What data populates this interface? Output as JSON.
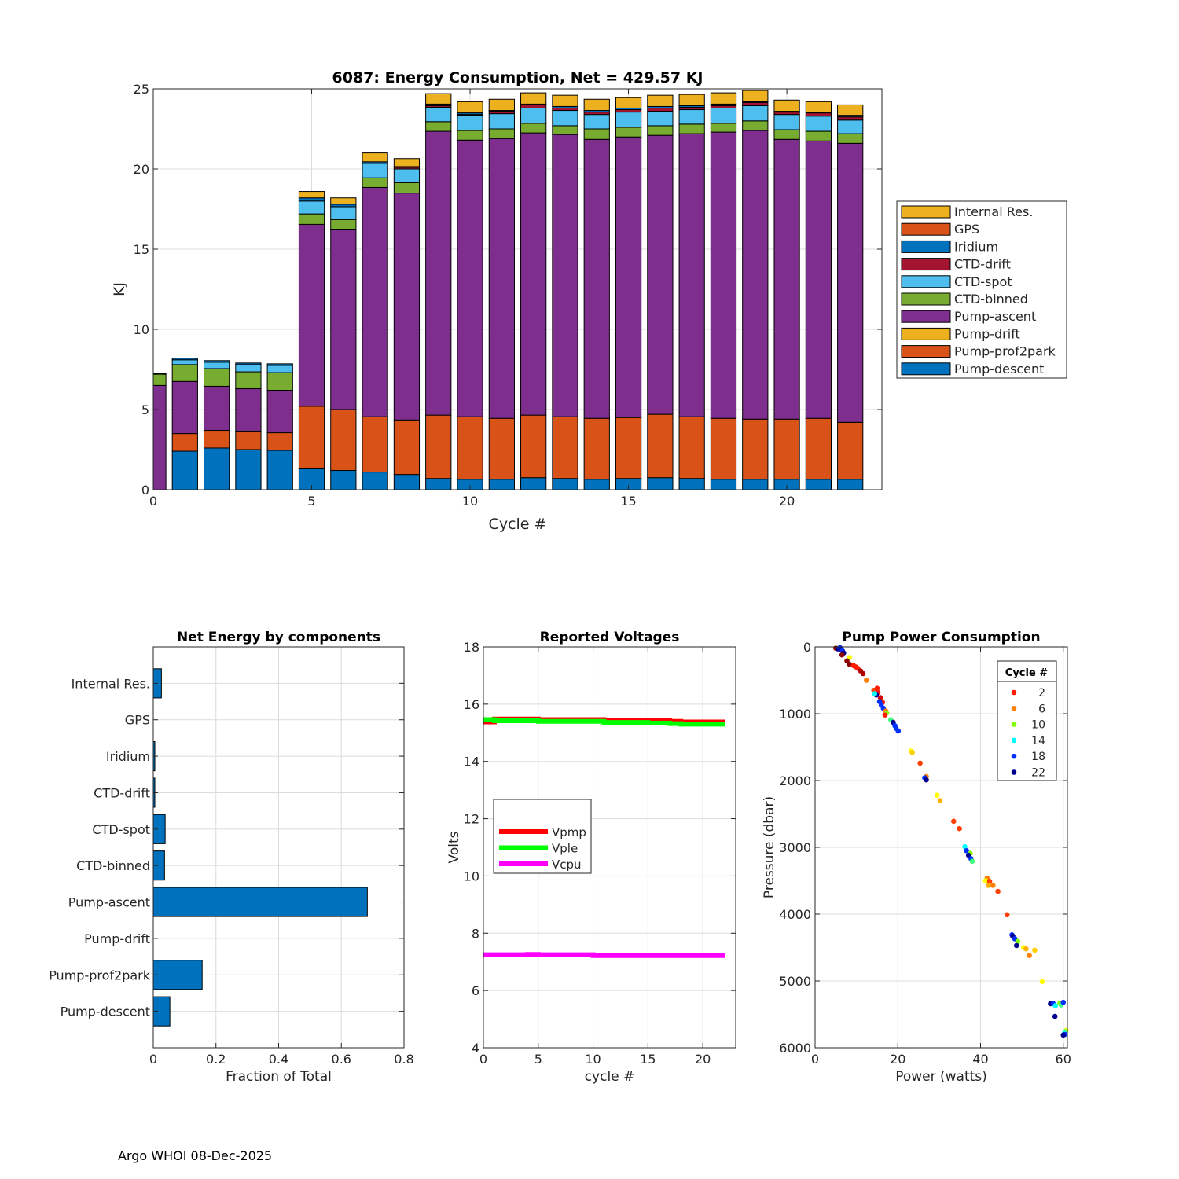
{
  "footer": "Argo WHOI 08-Dec-2025",
  "chart_data": [
    {
      "id": "energy",
      "type": "bar",
      "stacked": true,
      "title": "6087: Energy Consumption,  Net = 429.57 KJ",
      "xlabel": "Cycle #",
      "ylabel": "KJ",
      "xlim": [
        0,
        23
      ],
      "ylim": [
        0,
        25
      ],
      "xticks": [
        0,
        5,
        10,
        15,
        20
      ],
      "yticks": [
        0,
        5,
        10,
        15,
        20,
        25
      ],
      "grid": true,
      "legend_position": "outside-right",
      "x": [
        0,
        1,
        2,
        3,
        4,
        5,
        6,
        7,
        8,
        9,
        10,
        11,
        12,
        13,
        14,
        15,
        16,
        17,
        18,
        19,
        20,
        21,
        22
      ],
      "series": [
        {
          "name": "Pump-descent",
          "color": "#0072BD",
          "values": [
            0,
            2.4,
            2.6,
            2.5,
            2.45,
            1.3,
            1.2,
            1.1,
            0.95,
            0.7,
            0.65,
            0.65,
            0.75,
            0.7,
            0.65,
            0.7,
            0.75,
            0.7,
            0.65,
            0.65,
            0.65,
            0.65,
            0.65
          ]
        },
        {
          "name": "Pump-prof2park",
          "color": "#D95319",
          "values": [
            0,
            1.1,
            1.1,
            1.15,
            1.1,
            3.9,
            3.8,
            3.45,
            3.4,
            3.95,
            3.9,
            3.8,
            3.9,
            3.85,
            3.8,
            3.8,
            3.95,
            3.85,
            3.8,
            3.75,
            3.75,
            3.8,
            3.55
          ]
        },
        {
          "name": "Pump-drift",
          "color": "#EDB120",
          "values": [
            0,
            0,
            0,
            0,
            0,
            0,
            0,
            0,
            0,
            0,
            0,
            0,
            0,
            0,
            0,
            0,
            0,
            0,
            0,
            0,
            0,
            0,
            0
          ]
        },
        {
          "name": "Pump-ascent",
          "color": "#7E2F8E",
          "values": [
            6.5,
            3.25,
            2.75,
            2.65,
            2.65,
            11.35,
            11.25,
            14.3,
            14.15,
            17.7,
            17.25,
            17.45,
            17.6,
            17.6,
            17.4,
            17.5,
            17.4,
            17.65,
            17.85,
            18.0,
            17.45,
            17.3,
            17.4
          ]
        },
        {
          "name": "CTD-binned",
          "color": "#77AC30",
          "values": [
            0.7,
            1.05,
            1.1,
            1.05,
            1.1,
            0.65,
            0.6,
            0.6,
            0.65,
            0.6,
            0.6,
            0.6,
            0.6,
            0.55,
            0.65,
            0.6,
            0.6,
            0.6,
            0.55,
            0.6,
            0.6,
            0.6,
            0.6
          ]
        },
        {
          "name": "CTD-spot",
          "color": "#4DBEEE",
          "values": [
            0,
            0.3,
            0.4,
            0.45,
            0.45,
            0.8,
            0.8,
            0.9,
            0.85,
            0.9,
            0.95,
            0.95,
            0.95,
            0.95,
            0.9,
            0.95,
            0.9,
            0.9,
            0.95,
            0.95,
            0.95,
            0.95,
            0.85
          ]
        },
        {
          "name": "CTD-drift",
          "color": "#A2142F",
          "values": [
            0,
            0,
            0,
            0,
            0,
            0,
            0,
            0,
            0.1,
            0.1,
            0.05,
            0.15,
            0.2,
            0.15,
            0.15,
            0.15,
            0.2,
            0.15,
            0.15,
            0.2,
            0.15,
            0.2,
            0.2
          ]
        },
        {
          "name": "Iridium",
          "color": "#0072BD",
          "values": [
            0.05,
            0.1,
            0.1,
            0.1,
            0.1,
            0.2,
            0.15,
            0.1,
            0.05,
            0.1,
            0.1,
            0.05,
            0.05,
            0.1,
            0.1,
            0.1,
            0.1,
            0.1,
            0.1,
            0.05,
            0.05,
            0.05,
            0.1
          ]
        },
        {
          "name": "GPS",
          "color": "#D95319",
          "values": [
            0,
            0,
            0,
            0,
            0,
            0,
            0,
            0,
            0,
            0,
            0,
            0,
            0,
            0,
            0,
            0,
            0,
            0,
            0,
            0,
            0,
            0,
            0
          ]
        },
        {
          "name": "Internal Res.",
          "color": "#EDB120",
          "values": [
            0,
            0,
            0,
            0,
            0,
            0.4,
            0.4,
            0.55,
            0.5,
            0.65,
            0.7,
            0.7,
            0.7,
            0.7,
            0.7,
            0.65,
            0.7,
            0.7,
            0.7,
            0.7,
            0.7,
            0.65,
            0.65
          ]
        }
      ],
      "legend": [
        "Internal Res.",
        "GPS",
        "Iridium",
        "CTD-drift",
        "CTD-spot",
        "CTD-binned",
        "Pump-ascent",
        "Pump-drift",
        "Pump-prof2park",
        "Pump-descent"
      ]
    },
    {
      "id": "components",
      "type": "bar",
      "orientation": "horizontal",
      "title": "Net Energy by components",
      "xlabel": "Fraction of Total",
      "ylabel": "",
      "xlim": [
        0,
        0.8
      ],
      "xticks": [
        0,
        0.2,
        0.4,
        0.6,
        0.8
      ],
      "grid": true,
      "color": "#0072BD",
      "categories": [
        "Internal Res.",
        "GPS",
        "Iridium",
        "CTD-drift",
        "CTD-spot",
        "CTD-binned",
        "Pump-ascent",
        "Pump-drift",
        "Pump-prof2park",
        "Pump-descent"
      ],
      "values": [
        0.026,
        0,
        0.005,
        0.005,
        0.038,
        0.036,
        0.683,
        0,
        0.156,
        0.053
      ]
    },
    {
      "id": "voltages",
      "type": "line",
      "title": "Reported Voltages",
      "xlabel": "cycle #",
      "ylabel": "Volts",
      "xlim": [
        0,
        23
      ],
      "ylim": [
        4,
        18
      ],
      "xticks": [
        0,
        5,
        10,
        15,
        20
      ],
      "yticks": [
        4,
        6,
        8,
        10,
        12,
        14,
        16,
        18
      ],
      "grid": true,
      "legend_position": "middle-left",
      "x": [
        0,
        1,
        2,
        3,
        4,
        5,
        6,
        7,
        8,
        9,
        10,
        11,
        12,
        13,
        14,
        15,
        16,
        17,
        18,
        19,
        20,
        21,
        22
      ],
      "series": [
        {
          "name": "Vpmp",
          "color": "#FF0000",
          "values": [
            15.38,
            15.48,
            15.48,
            15.48,
            15.48,
            15.46,
            15.46,
            15.46,
            15.46,
            15.46,
            15.46,
            15.44,
            15.44,
            15.44,
            15.44,
            15.42,
            15.42,
            15.4,
            15.38,
            15.38,
            15.38,
            15.38,
            15.38
          ]
        },
        {
          "name": "Vple",
          "color": "#00FF00",
          "values": [
            15.46,
            15.42,
            15.42,
            15.42,
            15.42,
            15.4,
            15.4,
            15.4,
            15.4,
            15.4,
            15.4,
            15.36,
            15.36,
            15.36,
            15.36,
            15.34,
            15.34,
            15.32,
            15.3,
            15.3,
            15.3,
            15.3,
            15.3
          ]
        },
        {
          "name": "Vcpu",
          "color": "#FF00FF",
          "values": [
            7.25,
            7.25,
            7.25,
            7.25,
            7.26,
            7.25,
            7.25,
            7.25,
            7.25,
            7.25,
            7.22,
            7.22,
            7.22,
            7.22,
            7.22,
            7.22,
            7.22,
            7.22,
            7.22,
            7.22,
            7.22,
            7.22,
            7.22
          ]
        }
      ]
    },
    {
      "id": "pump",
      "type": "scatter",
      "title": "Pump Power Consumption",
      "xlabel": "Power (watts)",
      "ylabel": "Pressure (dbar)",
      "xlim": [
        0,
        61
      ],
      "ylim": [
        6000,
        0
      ],
      "xticks": [
        0,
        20,
        40,
        60
      ],
      "yticks": [
        0,
        1000,
        2000,
        3000,
        4000,
        5000,
        6000
      ],
      "grid": true,
      "legend_title": "Cycle #",
      "legend_position": "top-right",
      "legend": [
        {
          "label": "2",
          "color": "#FF1A00"
        },
        {
          "label": "6",
          "color": "#FF7F00"
        },
        {
          "label": "10",
          "color": "#80FF00"
        },
        {
          "label": "14",
          "color": "#00FFFF"
        },
        {
          "label": "18",
          "color": "#0030FF"
        },
        {
          "label": "22",
          "color": "#00008F"
        }
      ],
      "points": [
        {
          "x": 5.0,
          "y": 20,
          "color": "#8B0000"
        },
        {
          "x": 5.5,
          "y": 30,
          "color": "#00008F"
        },
        {
          "x": 6.0,
          "y": 10,
          "color": "#0030FF"
        },
        {
          "x": 6.3,
          "y": 40,
          "color": "#00008F"
        },
        {
          "x": 6.6,
          "y": 60,
          "color": "#0030FF"
        },
        {
          "x": 6.9,
          "y": 90,
          "color": "#00008F"
        },
        {
          "x": 6.5,
          "y": 120,
          "color": "#8B0000"
        },
        {
          "x": 8.3,
          "y": 160,
          "color": "#FFFF00"
        },
        {
          "x": 7.7,
          "y": 210,
          "color": "#8B0000"
        },
        {
          "x": 8.3,
          "y": 260,
          "color": "#8B0000"
        },
        {
          "x": 9.3,
          "y": 280,
          "color": "#FF1A00"
        },
        {
          "x": 9.9,
          "y": 300,
          "color": "#FF1A00"
        },
        {
          "x": 10.3,
          "y": 320,
          "color": "#FF1A00"
        },
        {
          "x": 11.0,
          "y": 360,
          "color": "#B00000"
        },
        {
          "x": 11.6,
          "y": 400,
          "color": "#B00000"
        },
        {
          "x": 12.4,
          "y": 500,
          "color": "#FF7F00"
        },
        {
          "x": 14.2,
          "y": 650,
          "color": "#FF4000"
        },
        {
          "x": 15.0,
          "y": 620,
          "color": "#FF1A00"
        },
        {
          "x": 15.2,
          "y": 680,
          "color": "#FF1A00"
        },
        {
          "x": 14.8,
          "y": 720,
          "color": "#00008F"
        },
        {
          "x": 14.4,
          "y": 700,
          "color": "#00FFFF"
        },
        {
          "x": 15.8,
          "y": 760,
          "color": "#D00000"
        },
        {
          "x": 16.3,
          "y": 830,
          "color": "#FF1A00"
        },
        {
          "x": 15.6,
          "y": 820,
          "color": "#0030FF"
        },
        {
          "x": 16.0,
          "y": 870,
          "color": "#0030FF"
        },
        {
          "x": 16.5,
          "y": 920,
          "color": "#0030FF"
        },
        {
          "x": 17.1,
          "y": 960,
          "color": "#FF7F00"
        },
        {
          "x": 17.3,
          "y": 990,
          "color": "#80FF00"
        },
        {
          "x": 16.9,
          "y": 1020,
          "color": "#FF1A00"
        },
        {
          "x": 18.3,
          "y": 1090,
          "color": "#40FF80"
        },
        {
          "x": 18.9,
          "y": 1130,
          "color": "#00008F"
        },
        {
          "x": 19.3,
          "y": 1180,
          "color": "#0030FF"
        },
        {
          "x": 19.6,
          "y": 1220,
          "color": "#0030FF"
        },
        {
          "x": 20.1,
          "y": 1260,
          "color": "#0030FF"
        },
        {
          "x": 23.2,
          "y": 1560,
          "color": "#FFFF00"
        },
        {
          "x": 23.5,
          "y": 1580,
          "color": "#FFD000"
        },
        {
          "x": 25.4,
          "y": 1740,
          "color": "#FF4000"
        },
        {
          "x": 26.9,
          "y": 1940,
          "color": "#FF7F00"
        },
        {
          "x": 26.5,
          "y": 1960,
          "color": "#0030FF"
        },
        {
          "x": 26.9,
          "y": 1990,
          "color": "#00008F"
        },
        {
          "x": 29.5,
          "y": 2220,
          "color": "#FFFF00"
        },
        {
          "x": 30.2,
          "y": 2300,
          "color": "#FFB000"
        },
        {
          "x": 33.5,
          "y": 2610,
          "color": "#FF4000"
        },
        {
          "x": 34.9,
          "y": 2720,
          "color": "#FF4000"
        },
        {
          "x": 36.2,
          "y": 2990,
          "color": "#00FFFF"
        },
        {
          "x": 36.6,
          "y": 3050,
          "color": "#0030FF"
        },
        {
          "x": 37.5,
          "y": 3090,
          "color": "#80FF00"
        },
        {
          "x": 37.1,
          "y": 3120,
          "color": "#00008F"
        },
        {
          "x": 37.7,
          "y": 3170,
          "color": "#0030FF"
        },
        {
          "x": 38.0,
          "y": 3210,
          "color": "#40FF80"
        },
        {
          "x": 41.6,
          "y": 3460,
          "color": "#FF7F00"
        },
        {
          "x": 41.2,
          "y": 3500,
          "color": "#FFFF00"
        },
        {
          "x": 42.2,
          "y": 3510,
          "color": "#FF4000"
        },
        {
          "x": 41.9,
          "y": 3570,
          "color": "#FFB000"
        },
        {
          "x": 43.0,
          "y": 3570,
          "color": "#FF7F00"
        },
        {
          "x": 44.2,
          "y": 3660,
          "color": "#FF4000"
        },
        {
          "x": 46.4,
          "y": 4010,
          "color": "#FF4000"
        },
        {
          "x": 47.6,
          "y": 4310,
          "color": "#0030FF"
        },
        {
          "x": 47.8,
          "y": 4330,
          "color": "#00008F"
        },
        {
          "x": 48.3,
          "y": 4370,
          "color": "#0030FF"
        },
        {
          "x": 49.0,
          "y": 4410,
          "color": "#80FF00"
        },
        {
          "x": 48.7,
          "y": 4470,
          "color": "#00008F"
        },
        {
          "x": 50.4,
          "y": 4500,
          "color": "#FFFF00"
        },
        {
          "x": 51.0,
          "y": 4520,
          "color": "#FFB000"
        },
        {
          "x": 53.1,
          "y": 4540,
          "color": "#FFD000"
        },
        {
          "x": 51.8,
          "y": 4620,
          "color": "#FF7F00"
        },
        {
          "x": 54.9,
          "y": 5010,
          "color": "#FFFF00"
        },
        {
          "x": 56.9,
          "y": 5340,
          "color": "#00008F"
        },
        {
          "x": 57.6,
          "y": 5340,
          "color": "#0030FF"
        },
        {
          "x": 58.1,
          "y": 5370,
          "color": "#00FFFF"
        },
        {
          "x": 59.2,
          "y": 5330,
          "color": "#80FF00"
        },
        {
          "x": 59.5,
          "y": 5360,
          "color": "#40FF80"
        },
        {
          "x": 60.0,
          "y": 5320,
          "color": "#0030FF"
        },
        {
          "x": 58.0,
          "y": 5530,
          "color": "#00008F"
        },
        {
          "x": 60.7,
          "y": 5740,
          "color": "#FFFF00"
        },
        {
          "x": 60.5,
          "y": 5760,
          "color": "#40FF80"
        },
        {
          "x": 60.2,
          "y": 5790,
          "color": "#00FFFF"
        },
        {
          "x": 60.4,
          "y": 5800,
          "color": "#0030FF"
        },
        {
          "x": 60.0,
          "y": 5810,
          "color": "#00008F"
        }
      ]
    }
  ]
}
